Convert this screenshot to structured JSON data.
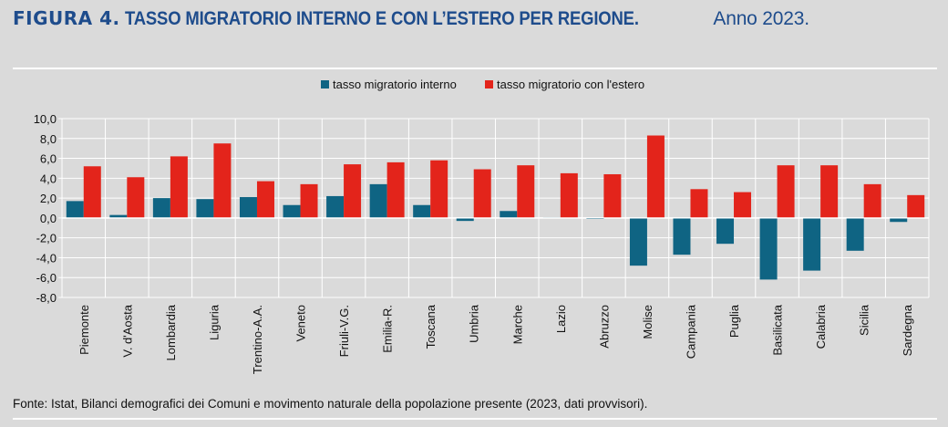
{
  "header": {
    "figure_label": "FIGURA 4.",
    "title": "TASSO MIGRATORIO INTERNO E CON L’ESTERO PER REGIONE.",
    "subtitle": "Anno 2023."
  },
  "colors": {
    "interno": "#0f6483",
    "estero": "#e3241b",
    "grid": "#ffffff",
    "title": "#1e4c8c"
  },
  "chart_data": {
    "type": "bar",
    "title": "TASSO MIGRATORIO INTERNO E CON L’ESTERO PER REGIONE. Anno 2023.",
    "xlabel": "",
    "ylabel": "",
    "ylim": [
      -8,
      10
    ],
    "yticks": [
      10,
      8,
      6,
      4,
      2,
      0,
      -2,
      -4,
      -6,
      -8
    ],
    "ytick_labels": [
      "10,0",
      "8,0",
      "6,0",
      "4,0",
      "2,0",
      "0,0",
      "-2,0",
      "-4,0",
      "-6,0",
      "-8,0"
    ],
    "grid": true,
    "legend_position": "top-center",
    "categories": [
      "Piemonte",
      "V. d'Aosta",
      "Lombardia",
      "Liguria",
      "Trentino-A.A.",
      "Veneto",
      "Friuli-V.G.",
      "Emilia-R.",
      "Toscana",
      "Umbria",
      "Marche",
      "Lazio",
      "Abruzzo",
      "Molise",
      "Campania",
      "Puglia",
      "Basilicata",
      "Calabria",
      "Sicilia",
      "Sardegna"
    ],
    "series": [
      {
        "name": "tasso migratorio interno",
        "color": "#0f6483",
        "values": [
          1.7,
          0.3,
          2.0,
          1.9,
          2.1,
          1.3,
          2.2,
          3.4,
          1.3,
          -0.3,
          0.7,
          0.05,
          -0.1,
          -4.8,
          -3.7,
          -2.6,
          -6.2,
          -5.3,
          -3.3,
          -0.4
        ]
      },
      {
        "name": "tasso migratorio con l'estero",
        "color": "#e3241b",
        "values": [
          5.2,
          4.1,
          6.2,
          7.5,
          3.7,
          3.4,
          5.4,
          5.6,
          5.8,
          4.9,
          5.3,
          4.5,
          4.4,
          8.3,
          2.9,
          2.6,
          5.3,
          5.3,
          3.4,
          2.3
        ]
      }
    ]
  },
  "footer": {
    "source": "Fonte: Istat, Bilanci demografici dei Comuni e movimento naturale della popolazione presente (2023, dati provvisori)."
  }
}
